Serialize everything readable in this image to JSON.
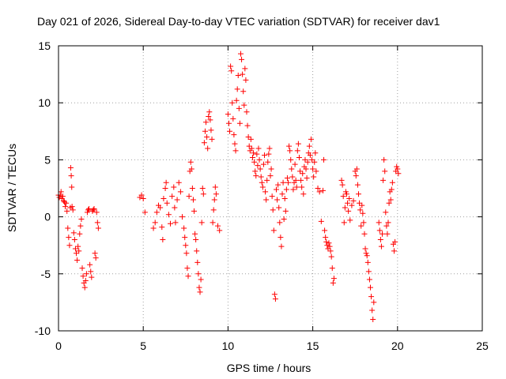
{
  "chart_data": {
    "type": "scatter",
    "title": "Day 021 of 2026, Sidereal Day-to-day VTEC variation (SDTVAR) for receiver dav1",
    "xlabel": "GPS time / hours",
    "ylabel": "SDTVAR / TECUs",
    "xlim": [
      0,
      25
    ],
    "ylim": [
      -10,
      15
    ],
    "xticks": [
      0,
      5,
      10,
      15,
      20,
      25
    ],
    "yticks": [
      -10,
      -5,
      0,
      5,
      10,
      15
    ],
    "xtick_labels": [
      "0",
      "5",
      "10",
      "15",
      "20",
      "25"
    ],
    "ytick_labels": [
      "-10",
      "-5",
      "0",
      "5",
      "10",
      "15"
    ],
    "grid": true,
    "marker": "+",
    "color": "#ff0000",
    "series": [
      {
        "name": "SDTVAR",
        "points": [
          [
            0.0,
            1.9
          ],
          [
            0.05,
            1.7
          ],
          [
            0.1,
            1.9
          ],
          [
            0.15,
            2.2
          ],
          [
            0.2,
            1.6
          ],
          [
            0.25,
            1.8
          ],
          [
            0.3,
            1.4
          ],
          [
            0.35,
            1.3
          ],
          [
            0.4,
            0.9
          ],
          [
            0.45,
            1.2
          ],
          [
            0.5,
            0.5
          ],
          [
            0.55,
            -1.0
          ],
          [
            0.6,
            -1.8
          ],
          [
            0.65,
            -2.5
          ],
          [
            0.7,
            0.8
          ],
          [
            0.72,
            4.3
          ],
          [
            0.75,
            3.6
          ],
          [
            0.78,
            2.6
          ],
          [
            0.8,
            0.9
          ],
          [
            0.85,
            0.6
          ],
          [
            0.9,
            -1.4
          ],
          [
            0.95,
            -2.0
          ],
          [
            1.0,
            -2.8
          ],
          [
            1.05,
            -3.2
          ],
          [
            1.1,
            -3.8
          ],
          [
            1.15,
            -2.6
          ],
          [
            1.2,
            -3.0
          ],
          [
            1.25,
            -1.5
          ],
          [
            1.3,
            -0.8
          ],
          [
            1.35,
            -0.2
          ],
          [
            1.4,
            -4.5
          ],
          [
            1.45,
            -5.2
          ],
          [
            1.5,
            -5.8
          ],
          [
            1.55,
            -6.2
          ],
          [
            1.6,
            -5.6
          ],
          [
            1.65,
            -5.0
          ],
          [
            1.7,
            0.4
          ],
          [
            1.75,
            0.6
          ],
          [
            1.8,
            0.7
          ],
          [
            1.85,
            -4.2
          ],
          [
            1.9,
            -4.8
          ],
          [
            1.95,
            -5.3
          ],
          [
            2.0,
            0.5
          ],
          [
            2.05,
            0.6
          ],
          [
            2.1,
            0.7
          ],
          [
            2.15,
            -3.2
          ],
          [
            2.2,
            -3.6
          ],
          [
            2.25,
            0.4
          ],
          [
            2.3,
            -0.5
          ],
          [
            2.35,
            -1.0
          ],
          [
            4.8,
            1.7
          ],
          [
            4.9,
            1.9
          ],
          [
            5.0,
            1.6
          ],
          [
            5.1,
            0.4
          ],
          [
            5.6,
            -1.0
          ],
          [
            5.7,
            -0.5
          ],
          [
            5.8,
            0.4
          ],
          [
            5.9,
            1.0
          ],
          [
            6.0,
            0.8
          ],
          [
            6.1,
            -0.9
          ],
          [
            6.15,
            -2.0
          ],
          [
            6.2,
            1.6
          ],
          [
            6.3,
            2.5
          ],
          [
            6.35,
            3.0
          ],
          [
            6.4,
            1.2
          ],
          [
            6.5,
            0.2
          ],
          [
            6.6,
            -0.6
          ],
          [
            6.7,
            1.8
          ],
          [
            6.8,
            2.6
          ],
          [
            6.85,
            0.8
          ],
          [
            6.9,
            -0.5
          ],
          [
            7.0,
            1.5
          ],
          [
            7.1,
            3.0
          ],
          [
            7.2,
            2.2
          ],
          [
            7.3,
            0.0
          ],
          [
            7.4,
            -1.0
          ],
          [
            7.45,
            -1.8
          ],
          [
            7.5,
            -2.5
          ],
          [
            7.55,
            -3.2
          ],
          [
            7.6,
            -4.5
          ],
          [
            7.65,
            -5.2
          ],
          [
            7.7,
            1.8
          ],
          [
            7.75,
            4.0
          ],
          [
            7.8,
            4.8
          ],
          [
            7.85,
            4.2
          ],
          [
            7.9,
            2.5
          ],
          [
            7.95,
            1.5
          ],
          [
            8.0,
            0.5
          ],
          [
            8.05,
            -1.5
          ],
          [
            8.1,
            -2.0
          ],
          [
            8.15,
            -3.0
          ],
          [
            8.2,
            -4.0
          ],
          [
            8.25,
            -5.0
          ],
          [
            8.3,
            -6.2
          ],
          [
            8.35,
            -6.6
          ],
          [
            8.4,
            -5.5
          ],
          [
            8.45,
            -0.5
          ],
          [
            8.5,
            2.5
          ],
          [
            8.55,
            2.0
          ],
          [
            8.6,
            6.5
          ],
          [
            8.65,
            7.5
          ],
          [
            8.7,
            8.3
          ],
          [
            8.75,
            7.0
          ],
          [
            8.8,
            6.0
          ],
          [
            8.85,
            8.8
          ],
          [
            8.9,
            9.2
          ],
          [
            8.95,
            8.5
          ],
          [
            9.0,
            7.6
          ],
          [
            9.05,
            6.8
          ],
          [
            9.1,
            -0.5
          ],
          [
            9.15,
            0.6
          ],
          [
            9.2,
            1.5
          ],
          [
            9.25,
            2.6
          ],
          [
            9.3,
            2.0
          ],
          [
            9.4,
            -0.8
          ],
          [
            9.5,
            -1.2
          ],
          [
            10.0,
            9.0
          ],
          [
            10.05,
            8.2
          ],
          [
            10.1,
            7.5
          ],
          [
            10.15,
            13.2
          ],
          [
            10.2,
            12.8
          ],
          [
            10.25,
            10.0
          ],
          [
            10.3,
            8.6
          ],
          [
            10.35,
            7.2
          ],
          [
            10.4,
            6.4
          ],
          [
            10.45,
            5.8
          ],
          [
            10.5,
            10.2
          ],
          [
            10.55,
            11.2
          ],
          [
            10.6,
            12.4
          ],
          [
            10.65,
            9.5
          ],
          [
            10.7,
            8.2
          ],
          [
            10.75,
            14.3
          ],
          [
            10.8,
            13.8
          ],
          [
            10.85,
            12.5
          ],
          [
            10.9,
            11.0
          ],
          [
            10.95,
            9.8
          ],
          [
            11.0,
            13.0
          ],
          [
            11.05,
            12.0
          ],
          [
            11.1,
            9.2
          ],
          [
            11.15,
            8.0
          ],
          [
            11.2,
            7.0
          ],
          [
            11.25,
            6.2
          ],
          [
            11.3,
            5.8
          ],
          [
            11.35,
            6.8
          ],
          [
            11.4,
            6.0
          ],
          [
            11.45,
            5.2
          ],
          [
            11.5,
            5.6
          ],
          [
            11.55,
            4.8
          ],
          [
            11.6,
            4.0
          ],
          [
            11.65,
            3.6
          ],
          [
            11.7,
            5.5
          ],
          [
            11.75,
            4.5
          ],
          [
            11.8,
            6.0
          ],
          [
            11.85,
            5.0
          ],
          [
            11.9,
            4.2
          ],
          [
            11.95,
            3.5
          ],
          [
            12.0,
            3.0
          ],
          [
            12.05,
            2.6
          ],
          [
            12.1,
            4.6
          ],
          [
            12.15,
            5.4
          ],
          [
            12.2,
            2.2
          ],
          [
            12.25,
            1.5
          ],
          [
            12.3,
            3.2
          ],
          [
            12.35,
            4.8
          ],
          [
            12.4,
            5.5
          ],
          [
            12.45,
            6.0
          ],
          [
            12.5,
            3.6
          ],
          [
            12.55,
            4.2
          ],
          [
            12.6,
            1.8
          ],
          [
            12.65,
            0.6
          ],
          [
            12.7,
            -1.2
          ],
          [
            12.75,
            -6.8
          ],
          [
            12.8,
            -7.2
          ],
          [
            12.85,
            2.4
          ],
          [
            12.9,
            1.5
          ],
          [
            12.95,
            2.8
          ],
          [
            13.0,
            0.8
          ],
          [
            13.05,
            -0.5
          ],
          [
            13.1,
            -1.8
          ],
          [
            13.15,
            -2.6
          ],
          [
            13.2,
            2.0
          ],
          [
            13.25,
            3.0
          ],
          [
            13.3,
            -0.2
          ],
          [
            13.35,
            1.6
          ],
          [
            13.4,
            0.5
          ],
          [
            13.45,
            2.4
          ],
          [
            13.5,
            3.4
          ],
          [
            13.55,
            3.0
          ],
          [
            13.6,
            6.2
          ],
          [
            13.65,
            5.8
          ],
          [
            13.7,
            5.0
          ],
          [
            13.75,
            4.2
          ],
          [
            13.8,
            3.5
          ],
          [
            13.85,
            2.4
          ],
          [
            13.9,
            3.0
          ],
          [
            13.95,
            4.6
          ],
          [
            14.0,
            3.2
          ],
          [
            14.05,
            2.6
          ],
          [
            14.1,
            5.8
          ],
          [
            14.15,
            6.4
          ],
          [
            14.2,
            5.2
          ],
          [
            14.25,
            4.0
          ],
          [
            14.3,
            3.2
          ],
          [
            14.35,
            2.6
          ],
          [
            14.4,
            3.8
          ],
          [
            14.45,
            2.0
          ],
          [
            14.5,
            4.4
          ],
          [
            14.55,
            5.0
          ],
          [
            14.6,
            4.2
          ],
          [
            14.65,
            3.4
          ],
          [
            14.7,
            4.8
          ],
          [
            14.75,
            5.6
          ],
          [
            14.8,
            6.2
          ],
          [
            14.85,
            5.4
          ],
          [
            14.9,
            6.8
          ],
          [
            14.95,
            5.0
          ],
          [
            15.0,
            4.2
          ],
          [
            15.05,
            3.5
          ],
          [
            15.1,
            4.8
          ],
          [
            15.15,
            5.6
          ],
          [
            15.2,
            4.0
          ],
          [
            15.3,
            2.5
          ],
          [
            15.4,
            2.2
          ],
          [
            15.5,
            -0.4
          ],
          [
            15.6,
            2.3
          ],
          [
            15.65,
            5.0
          ],
          [
            15.7,
            -1.2
          ],
          [
            15.75,
            -1.8
          ],
          [
            15.8,
            -2.2
          ],
          [
            15.85,
            -2.5
          ],
          [
            15.9,
            -2.8
          ],
          [
            15.95,
            -2.3
          ],
          [
            16.0,
            -2.6
          ],
          [
            16.05,
            -3.0
          ],
          [
            16.1,
            -3.5
          ],
          [
            16.15,
            -4.5
          ],
          [
            16.2,
            -5.8
          ],
          [
            16.25,
            -5.4
          ],
          [
            16.7,
            3.2
          ],
          [
            16.75,
            2.8
          ],
          [
            16.8,
            1.8
          ],
          [
            16.85,
            -0.5
          ],
          [
            16.9,
            0.8
          ],
          [
            16.95,
            2.2
          ],
          [
            17.0,
            2.0
          ],
          [
            17.05,
            1.2
          ],
          [
            17.1,
            0.5
          ],
          [
            17.15,
            1.6
          ],
          [
            17.2,
            -0.3
          ],
          [
            17.3,
            1.0
          ],
          [
            17.4,
            1.4
          ],
          [
            17.5,
            4.0
          ],
          [
            17.55,
            3.6
          ],
          [
            17.6,
            4.2
          ],
          [
            17.65,
            2.8
          ],
          [
            17.7,
            2.0
          ],
          [
            17.75,
            1.2
          ],
          [
            17.8,
            0.6
          ],
          [
            17.85,
            -0.8
          ],
          [
            17.9,
            1.0
          ],
          [
            17.95,
            0.3
          ],
          [
            18.0,
            -0.5
          ],
          [
            18.05,
            -1.5
          ],
          [
            18.1,
            -2.8
          ],
          [
            18.15,
            -3.2
          ],
          [
            18.2,
            -3.4
          ],
          [
            18.25,
            -4.0
          ],
          [
            18.3,
            -4.8
          ],
          [
            18.35,
            -5.5
          ],
          [
            18.4,
            -6.2
          ],
          [
            18.45,
            -7.0
          ],
          [
            18.5,
            -8.2
          ],
          [
            18.55,
            -9.0
          ],
          [
            18.6,
            -7.5
          ],
          [
            18.9,
            -0.5
          ],
          [
            18.95,
            -1.2
          ],
          [
            19.0,
            -2.0
          ],
          [
            19.05,
            -2.6
          ],
          [
            19.1,
            -1.5
          ],
          [
            19.15,
            3.2
          ],
          [
            19.2,
            5.0
          ],
          [
            19.25,
            4.0
          ],
          [
            19.3,
            0.4
          ],
          [
            19.35,
            -0.8
          ],
          [
            19.4,
            -1.5
          ],
          [
            19.45,
            -0.5
          ],
          [
            19.5,
            1.2
          ],
          [
            19.55,
            2.2
          ],
          [
            19.6,
            1.5
          ],
          [
            19.65,
            2.4
          ],
          [
            19.7,
            3.0
          ],
          [
            19.75,
            -2.4
          ],
          [
            19.8,
            -3.0
          ],
          [
            19.85,
            -2.2
          ],
          [
            19.9,
            4.0
          ],
          [
            19.95,
            4.4
          ],
          [
            20.0,
            4.2
          ],
          [
            20.05,
            3.8
          ]
        ]
      }
    ]
  }
}
